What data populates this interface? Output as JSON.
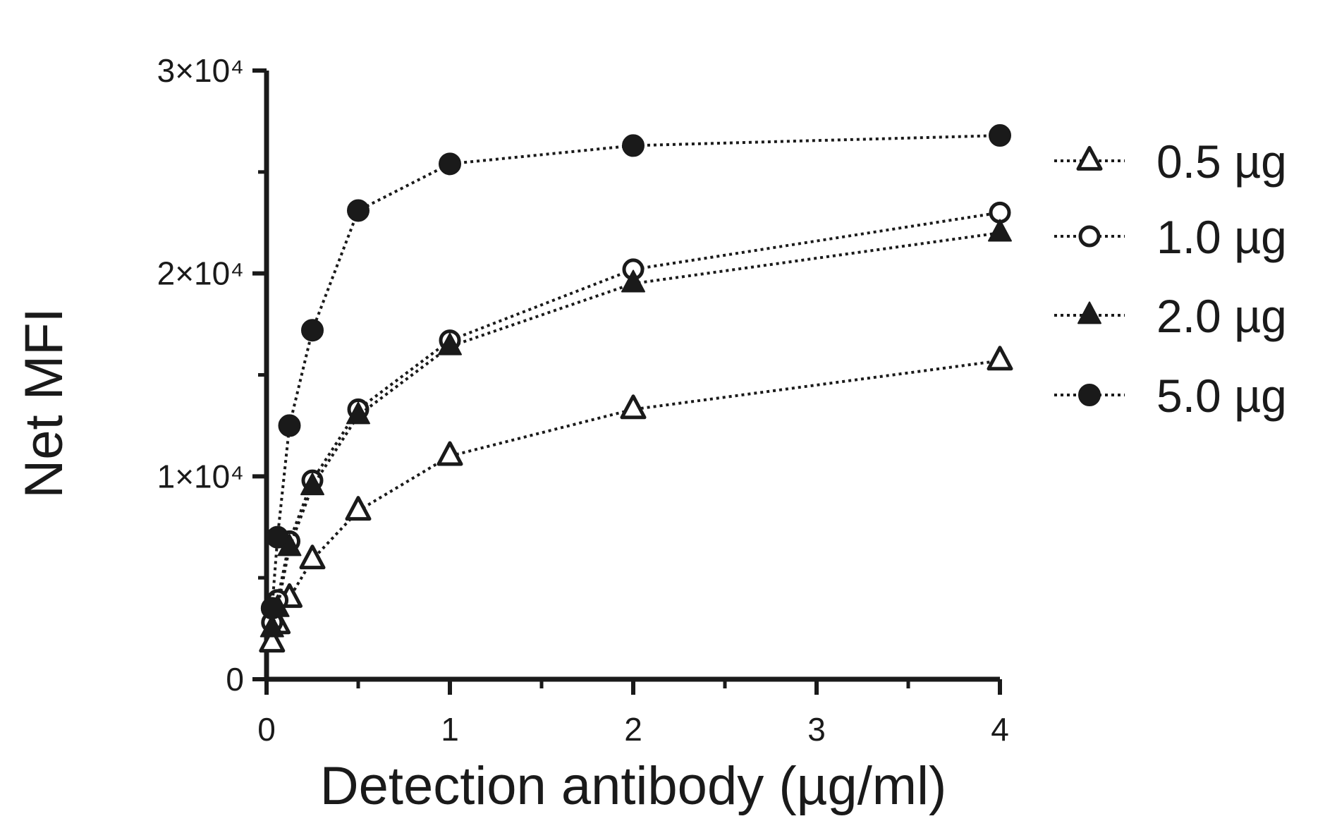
{
  "chart_data": {
    "type": "line",
    "title": "",
    "xlabel": "Detection antibody (µg/ml)",
    "ylabel": "Net MFI",
    "xlim": [
      0,
      4
    ],
    "ylim": [
      0,
      30000
    ],
    "x_ticks": [
      0,
      1,
      2,
      3,
      4
    ],
    "x_tick_labels": [
      "0",
      "1",
      "2",
      "3",
      "4"
    ],
    "y_ticks": [
      0,
      10000,
      20000,
      30000
    ],
    "y_tick_labels": [
      "0",
      "1×10⁴",
      "2×10⁴",
      "3×10⁴"
    ],
    "grid": false,
    "legend_position": "right",
    "x": [
      0.03,
      0.06,
      0.125,
      0.25,
      0.5,
      1,
      2,
      4
    ],
    "series": [
      {
        "name": "0.5 µg",
        "marker": "open-triangle",
        "values": [
          1800,
          2700,
          4000,
          5900,
          8300,
          11000,
          13300,
          15700
        ]
      },
      {
        "name": "1.0 µg",
        "marker": "open-circle",
        "values": [
          2800,
          3900,
          6800,
          9800,
          13300,
          16700,
          20200,
          23000
        ]
      },
      {
        "name": "2.0 µg",
        "marker": "filled-triangle",
        "values": [
          2500,
          3500,
          6500,
          9500,
          13000,
          16400,
          19500,
          22000
        ]
      },
      {
        "name": "5.0 µg",
        "marker": "filled-circle",
        "values": [
          3500,
          7000,
          12500,
          17200,
          23100,
          25400,
          26300,
          26800
        ]
      }
    ],
    "colors": {
      "ink": "#1a1a1a",
      "background": "#ffffff"
    }
  }
}
